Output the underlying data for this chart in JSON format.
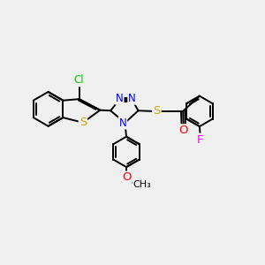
{
  "background_color": "#f0f0f0",
  "atom_colors": {
    "C": "#000000",
    "N": "#0000ff",
    "O": "#ff0000",
    "S": "#ccaa00",
    "Cl": "#00cc00",
    "F": "#ff00ff",
    "H": "#000000"
  },
  "bond_color": "#000000",
  "bond_width": 1.4,
  "font_size": 8.5,
  "figsize": [
    3.0,
    3.0
  ],
  "dpi": 100,
  "xlim": [
    -4.5,
    5.0
  ],
  "ylim": [
    -3.5,
    3.2
  ]
}
